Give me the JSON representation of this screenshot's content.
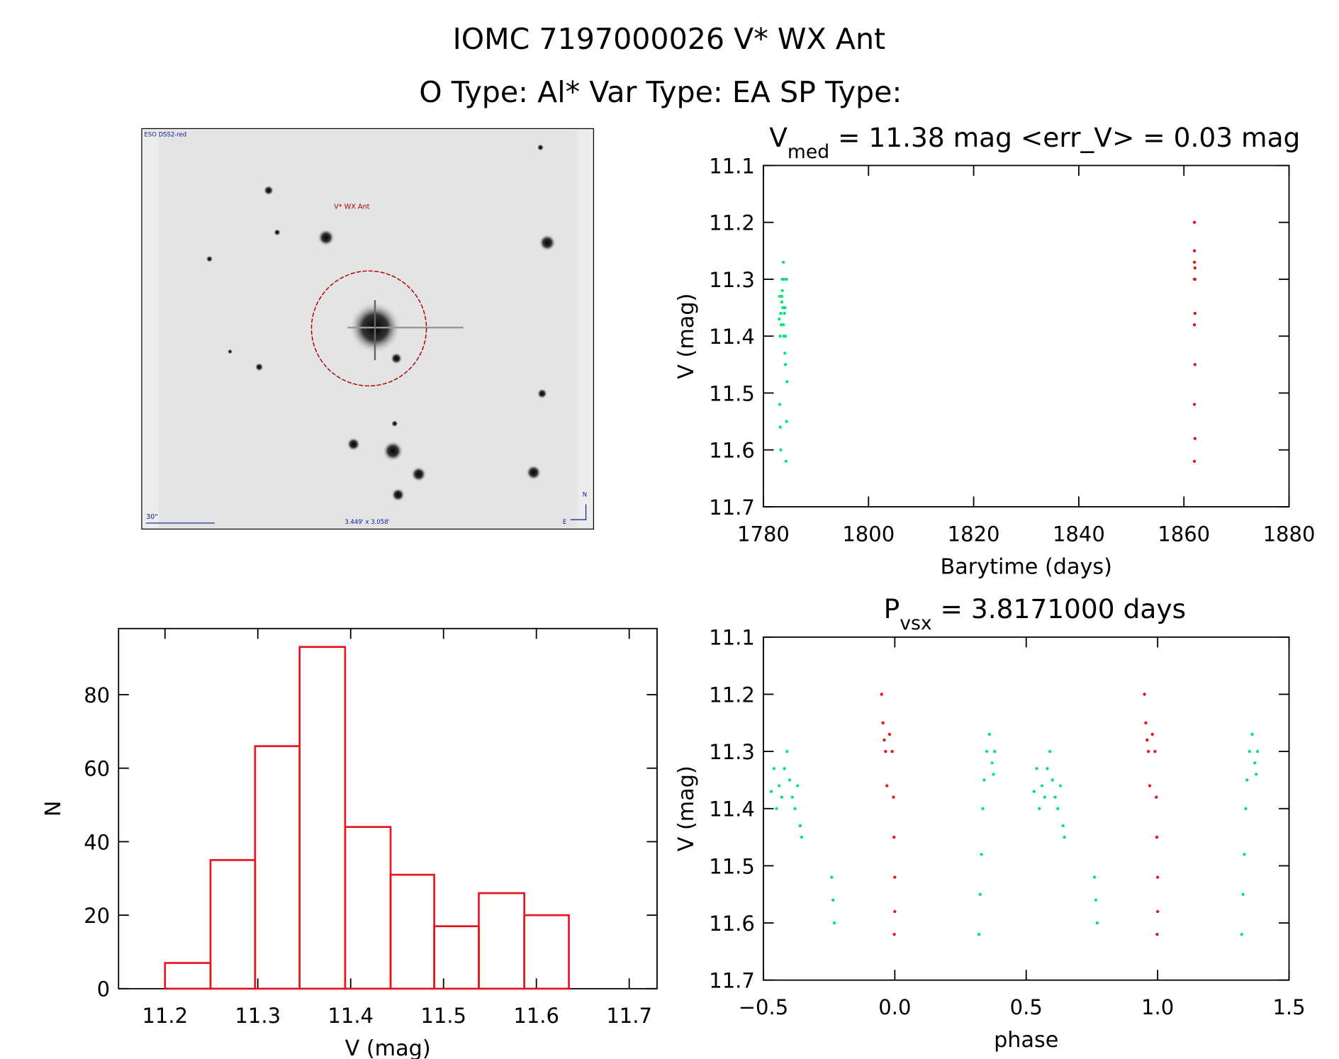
{
  "title": "IOMC 7197000026   V* WX Ant",
  "subtitle": "O Type: Al*  Var Type: EA  SP Type:",
  "image": {
    "survey": "ESO DSS2-red",
    "target": "V* WX Ant",
    "scale": "30\"",
    "fov": "3.449' x 3.058'",
    "north": "N",
    "east": "E"
  },
  "chart_data": [
    {
      "type": "scatter",
      "title": [
        "V",
        "med",
        " = 11.38 mag <err_V> = 0.03 mag"
      ],
      "x_label": "Barytime (days)",
      "y_label": "V (mag)",
      "xlim": [
        1780,
        1880
      ],
      "xticks": [
        1780,
        1800,
        1820,
        1840,
        1860,
        1880
      ],
      "ylim": [
        11.1,
        11.7
      ],
      "yticks": [
        11.1,
        11.2,
        11.3,
        11.4,
        11.5,
        11.6,
        11.7
      ],
      "y_inverted": true,
      "series": [
        {
          "name": "green",
          "color": "#00e676",
          "x": [
            1783.0,
            1783.1,
            1783.2,
            1783.3,
            1783.4,
            1783.5,
            1783.6,
            1783.7,
            1783.8,
            1783.9,
            1784.0,
            1784.1,
            1784.2,
            1783.1,
            1783.2,
            1783.3,
            1784.3,
            1784.4,
            1784.5,
            1784.2,
            1784.1,
            1783.9,
            1783.8,
            1783.6,
            1783.5,
            1784.4
          ],
          "values": [
            11.37,
            11.33,
            11.4,
            11.36,
            11.38,
            11.33,
            11.3,
            11.35,
            11.38,
            11.4,
            11.36,
            11.43,
            11.45,
            11.52,
            11.56,
            11.6,
            11.62,
            11.55,
            11.48,
            11.4,
            11.35,
            11.3,
            11.27,
            11.32,
            11.34,
            11.3
          ]
        },
        {
          "name": "red",
          "color": "#e8141b",
          "x": [
            1862.0,
            1862.0,
            1862.1,
            1862.0,
            1862.1,
            1862.0,
            1862.1,
            1862.0,
            1862.1,
            1862.0,
            1862.1,
            1862.0
          ],
          "values": [
            11.2,
            11.25,
            11.28,
            11.3,
            11.36,
            11.27,
            11.3,
            11.38,
            11.45,
            11.52,
            11.58,
            11.62
          ]
        }
      ]
    },
    {
      "type": "scatter",
      "title": [
        "P",
        "vsx",
        " = 3.8171000 days"
      ],
      "x_label": "phase",
      "y_label": "V (mag)",
      "xlim": [
        -0.5,
        1.5
      ],
      "xticks": [
        {
          "value": -0.5,
          "label": "−0.5"
        },
        {
          "value": 0,
          "label": "0.0"
        },
        0.5,
        {
          "value": 1,
          "label": "1.0"
        },
        1.5
      ],
      "ylim": [
        11.1,
        11.7
      ],
      "yticks": [
        11.1,
        11.2,
        11.3,
        11.4,
        11.5,
        11.6,
        11.7
      ],
      "y_inverted": true,
      "series": [
        {
          "name": "green",
          "color": "#00e676",
          "x": [
            -0.47,
            -0.46,
            -0.45,
            -0.44,
            -0.43,
            -0.42,
            -0.41,
            -0.4,
            -0.39,
            -0.38,
            -0.37,
            -0.36,
            -0.355,
            -0.24,
            -0.235,
            -0.23,
            0.32,
            0.325,
            0.33,
            0.335,
            0.34,
            0.35,
            0.36,
            0.37,
            0.375,
            0.38,
            0.53,
            0.54,
            0.55,
            0.56,
            0.57,
            0.58,
            0.59,
            0.6,
            0.61,
            0.62,
            0.63,
            0.64,
            0.645,
            0.76,
            0.765,
            0.77,
            1.32,
            1.325,
            1.33,
            1.335,
            1.34,
            1.35,
            1.36,
            1.37,
            1.375,
            1.38
          ],
          "values": [
            11.37,
            11.33,
            11.4,
            11.36,
            11.38,
            11.33,
            11.3,
            11.35,
            11.38,
            11.4,
            11.36,
            11.43,
            11.45,
            11.52,
            11.56,
            11.6,
            11.62,
            11.55,
            11.48,
            11.4,
            11.35,
            11.3,
            11.27,
            11.32,
            11.34,
            11.3,
            11.37,
            11.33,
            11.4,
            11.36,
            11.38,
            11.33,
            11.3,
            11.35,
            11.38,
            11.4,
            11.36,
            11.43,
            11.45,
            11.52,
            11.56,
            11.6,
            11.62,
            11.55,
            11.48,
            11.4,
            11.35,
            11.3,
            11.27,
            11.32,
            11.34,
            11.3
          ]
        },
        {
          "name": "red",
          "color": "#e8141b",
          "x": [
            -0.05,
            -0.045,
            -0.04,
            -0.035,
            -0.03,
            -0.02,
            -0.01,
            -0.005,
            -0.003,
            0,
            0,
            -0.002,
            0.95,
            0.955,
            0.96,
            0.965,
            0.97,
            0.98,
            0.99,
            0.995,
            0.997,
            1,
            1,
            0.998
          ],
          "values": [
            11.2,
            11.25,
            11.28,
            11.3,
            11.36,
            11.27,
            11.3,
            11.38,
            11.45,
            11.52,
            11.58,
            11.62,
            11.2,
            11.25,
            11.28,
            11.3,
            11.36,
            11.27,
            11.3,
            11.38,
            11.45,
            11.52,
            11.58,
            11.62
          ]
        }
      ]
    },
    {
      "type": "histogram",
      "x_label": "V (mag)",
      "y_label": "N",
      "color": "#e8141b",
      "bins": [
        11.2,
        11.249,
        11.297,
        11.345,
        11.394,
        11.443,
        11.49,
        11.538,
        11.587,
        11.635
      ],
      "values": [
        7,
        35,
        66,
        93,
        44,
        31,
        17,
        26,
        20
      ],
      "xlim": [
        11.15,
        11.73
      ],
      "xticks": [
        11.2,
        11.3,
        11.4,
        11.5,
        11.6,
        11.7
      ],
      "ylim": [
        0,
        98
      ],
      "yticks": [
        0,
        20,
        40,
        60,
        80
      ]
    }
  ]
}
